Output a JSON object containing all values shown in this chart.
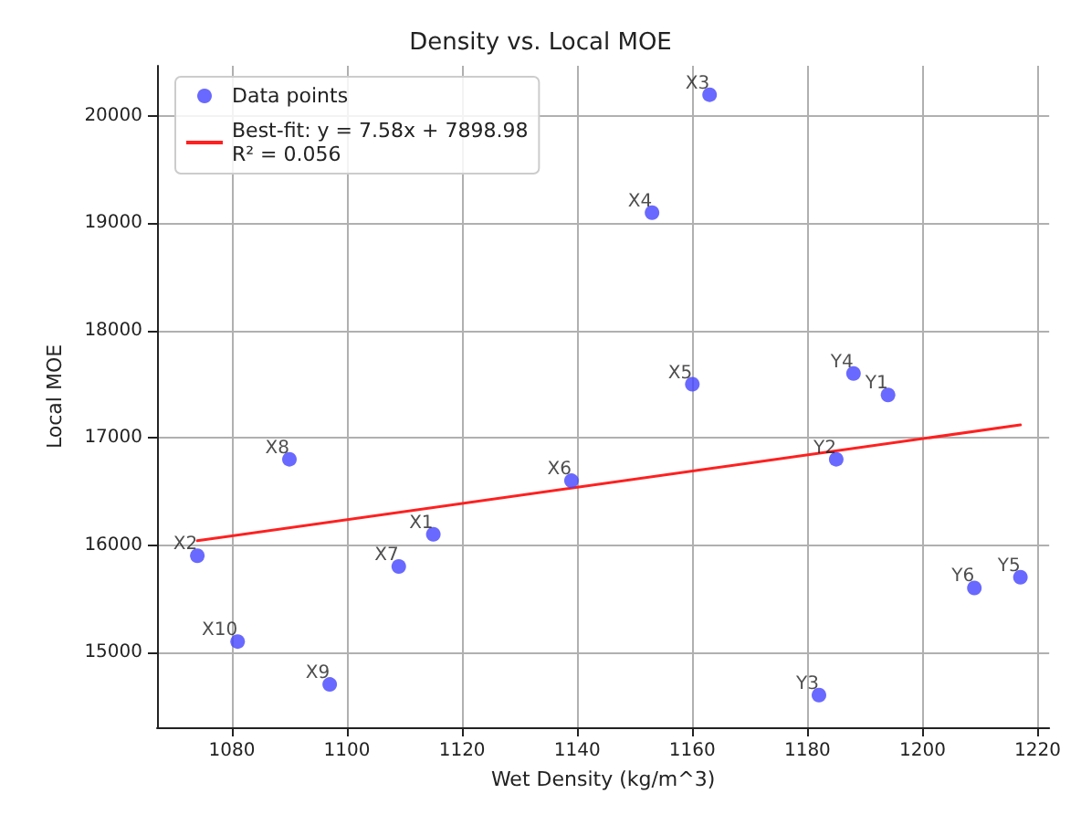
{
  "chart_data": {
    "type": "scatter",
    "title": "Density vs. Local MOE",
    "xlabel": "Wet Density (kg/m^3)",
    "ylabel": "Local MOE",
    "x": [
      1115,
      1074,
      1163,
      1153,
      1160,
      1139,
      1109,
      1090,
      1097,
      1081,
      1194,
      1185,
      1182,
      1188,
      1217,
      1209
    ],
    "series": [
      {
        "name": "Data points",
        "color": "#4343ff",
        "values": [
          16100,
          15900,
          20200,
          19100,
          17500,
          16600,
          15800,
          16800,
          14700,
          15100,
          17400,
          16800,
          14600,
          17600,
          15700,
          15600
        ]
      },
      {
        "name": "Best-fit: y = 7.58x + 7898.98\nR² = 0.056",
        "type": "line",
        "marker": "none",
        "color": "#ff2020",
        "x": [
          1074,
          1217
        ],
        "values": [
          16040,
          17120
        ]
      }
    ],
    "annotations": [
      {
        "text": "X1",
        "x": 1115,
        "y": 16100
      },
      {
        "text": "X2",
        "x": 1074,
        "y": 15900
      },
      {
        "text": "X3",
        "x": 1163,
        "y": 20200
      },
      {
        "text": "X4",
        "x": 1153,
        "y": 19100
      },
      {
        "text": "X5",
        "x": 1160,
        "y": 17500
      },
      {
        "text": "X6",
        "x": 1139,
        "y": 16600
      },
      {
        "text": "X7",
        "x": 1109,
        "y": 15800
      },
      {
        "text": "X8",
        "x": 1090,
        "y": 16800
      },
      {
        "text": "X9",
        "x": 1097,
        "y": 14700
      },
      {
        "text": "X10",
        "x": 1081,
        "y": 15100
      },
      {
        "text": "Y1",
        "x": 1194,
        "y": 17400
      },
      {
        "text": "Y2",
        "x": 1185,
        "y": 16800
      },
      {
        "text": "Y3",
        "x": 1182,
        "y": 14600
      },
      {
        "text": "Y4",
        "x": 1188,
        "y": 17600
      },
      {
        "text": "Y5",
        "x": 1217,
        "y": 15700
      },
      {
        "text": "Y6",
        "x": 1209,
        "y": 15600
      }
    ],
    "xlim": [
      1067,
      1222
    ],
    "xticks": [
      1080,
      1100,
      1120,
      1140,
      1160,
      1180,
      1200,
      1220
    ],
    "ylim": [
      14300,
      20470
    ],
    "yticks": [
      15000,
      16000,
      17000,
      18000,
      19000,
      20000
    ],
    "grid": true,
    "legend": "top left",
    "marker": "circle",
    "line_style": "solid"
  }
}
